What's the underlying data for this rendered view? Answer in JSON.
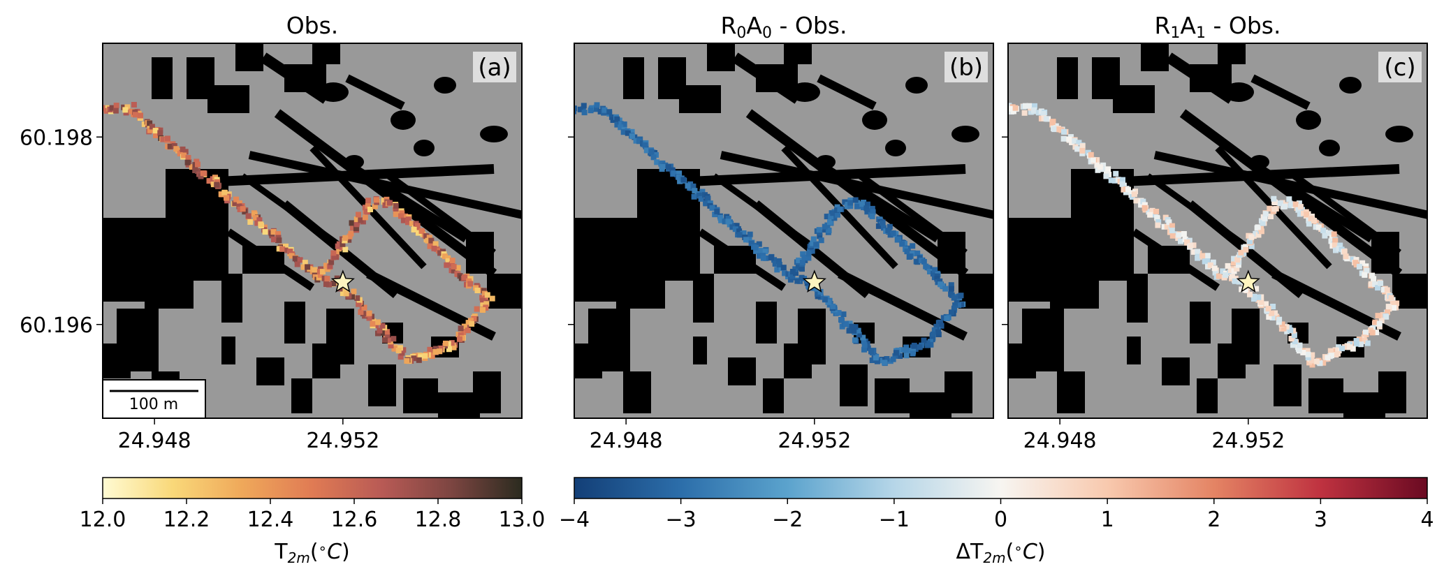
{
  "figure": {
    "panels": [
      {
        "id": "a",
        "title_main": "Obs.",
        "title_parts": [],
        "label": "(a)",
        "mode": "obs",
        "show_yticks": true,
        "show_scalebar": true
      },
      {
        "id": "b",
        "title_main": "",
        "title_parts": [
          {
            "t": "R"
          },
          {
            "t": "0",
            "sub": true
          },
          {
            "t": "A"
          },
          {
            "t": "0",
            "sub": true
          },
          {
            "t": " - Obs."
          }
        ],
        "label": "(b)",
        "mode": "r0a0",
        "show_yticks": false,
        "show_scalebar": false
      },
      {
        "id": "c",
        "title_main": "",
        "title_parts": [
          {
            "t": "R"
          },
          {
            "t": "1",
            "sub": true
          },
          {
            "t": "A"
          },
          {
            "t": "1",
            "sub": true
          },
          {
            "t": " - Obs."
          }
        ],
        "label": "(c)",
        "mode": "r1a1",
        "show_yticks": false,
        "show_scalebar": false
      }
    ],
    "x_ticks": [
      "24.948",
      "24.952"
    ],
    "x_tick_values": [
      24.948,
      24.952
    ],
    "y_ticks": [
      "60.198",
      "60.196"
    ],
    "y_tick_values": [
      60.198,
      60.196
    ],
    "scalebar_label": "100 m",
    "colors": {
      "background": "#999999",
      "buildings": "#000000",
      "star_fill": "#fff5c0"
    },
    "colorbar_obs": {
      "ticks": [
        "12.0",
        "12.2",
        "12.4",
        "12.6",
        "12.8",
        "13.0"
      ],
      "tick_values": [
        12.0,
        12.2,
        12.4,
        12.6,
        12.8,
        13.0
      ],
      "label_parts": [
        {
          "t": "T"
        },
        {
          "t": "2m",
          "sub": true,
          "italic": true
        },
        {
          "t": "("
        },
        {
          "t": "∘",
          "sup": true
        },
        {
          "t": "C",
          "italic": true
        },
        {
          "t": ")"
        }
      ],
      "cmap": [
        "#fffbd3",
        "#f9d879",
        "#efa85a",
        "#e07b54",
        "#b85a55",
        "#7c4541",
        "#2b2b1f"
      ]
    },
    "colorbar_diff": {
      "ticks": [
        "−4",
        "−3",
        "−2",
        "−1",
        "0",
        "1",
        "2",
        "3",
        "4"
      ],
      "tick_values": [
        -4,
        -3,
        -2,
        -1,
        0,
        1,
        2,
        3,
        4
      ],
      "label_parts": [
        {
          "t": "ΔT"
        },
        {
          "t": "2m",
          "sub": true,
          "italic": true
        },
        {
          "t": "("
        },
        {
          "t": "∘",
          "sup": true
        },
        {
          "t": "C",
          "italic": true
        },
        {
          "t": ")"
        }
      ],
      "cmap": [
        "#133f77",
        "#2c6eaa",
        "#5ba3cd",
        "#b6d6e8",
        "#f7f5f1",
        "#f8c9ae",
        "#e48464",
        "#bf3240",
        "#6a0a22"
      ]
    }
  },
  "chart_data": {
    "type": "heatmap",
    "panels": [
      {
        "id": "a",
        "title": "Obs.",
        "quantity": "T2m (°C)",
        "vmin": 12.0,
        "vmax": 13.0
      },
      {
        "id": "b",
        "title": "R0A0 - Obs.",
        "quantity": "ΔT2m (°C)",
        "vmin": -4,
        "vmax": 4
      },
      {
        "id": "c",
        "title": "R1A1 - Obs.",
        "quantity": "ΔT2m (°C)",
        "vmin": -4,
        "vmax": 4
      }
    ],
    "xlim": [
      24.9469,
      24.9558
    ],
    "ylim": [
      60.195,
      60.199
    ],
    "star_location": {
      "lon": 24.952,
      "lat": 60.19645
    },
    "route": [
      {
        "lon": 24.9468,
        "lat": 60.1983
      },
      {
        "lon": 24.9475,
        "lat": 60.1983
      },
      {
        "lon": 24.9515,
        "lat": 60.1965
      },
      {
        "lon": 24.9526,
        "lat": 60.1973
      },
      {
        "lon": 24.953,
        "lat": 60.1973
      },
      {
        "lon": 24.9551,
        "lat": 60.19625
      },
      {
        "lon": 24.9544,
        "lat": 60.1958
      },
      {
        "lon": 24.9534,
        "lat": 60.1956
      },
      {
        "lon": 24.952,
        "lat": 60.1964
      },
      {
        "lon": 24.9516,
        "lat": 60.1965
      }
    ],
    "value_summary": {
      "a_range": [
        12.0,
        13.0
      ],
      "b_typical": -4,
      "c_typical_range": [
        -1,
        1
      ]
    }
  }
}
